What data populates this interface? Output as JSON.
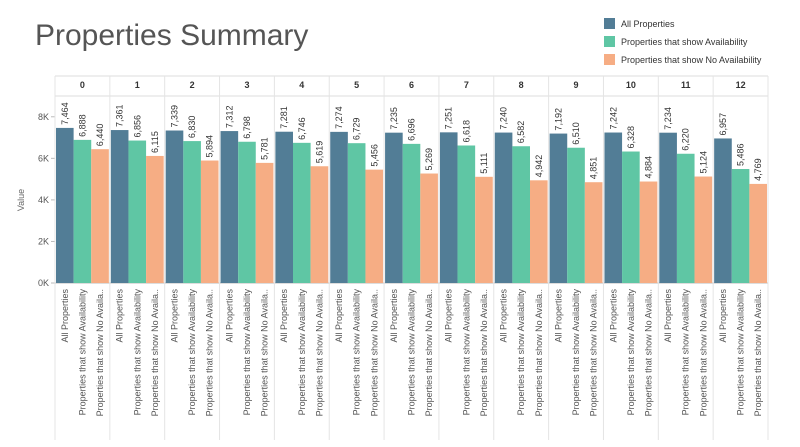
{
  "chart_data": {
    "type": "bar",
    "title": "Properties Summary",
    "y_label": "Value",
    "categories": [
      "0",
      "1",
      "2",
      "3",
      "4",
      "5",
      "6",
      "7",
      "8",
      "9",
      "10",
      "11",
      "12"
    ],
    "bar_labels": [
      "All Properties",
      "Properties that show Availability",
      "Properties that show No Availa.."
    ],
    "series": [
      {
        "name": "All Properties",
        "color": "#527d96",
        "values": [
          7464,
          7361,
          7339,
          7312,
          7281,
          7274,
          7235,
          7251,
          7240,
          7192,
          7242,
          7234,
          6957
        ],
        "value_labels": [
          "7,464",
          "7,361",
          "7,339",
          "7,312",
          "7,281",
          "7,274",
          "7,235",
          "7,251",
          "7,240",
          "7,192",
          "7,242",
          "7,234",
          "6,957"
        ]
      },
      {
        "name": "Properties that show Availability",
        "color": "#5fc6a4",
        "values": [
          6888,
          6856,
          6830,
          6798,
          6746,
          6729,
          6696,
          6618,
          6582,
          6510,
          6328,
          6220,
          5486
        ],
        "value_labels": [
          "6,888",
          "6,856",
          "6,830",
          "6,798",
          "6,746",
          "6,729",
          "6,696",
          "6,618",
          "6,582",
          "6,510",
          "6,328",
          "6,220",
          "5,486"
        ]
      },
      {
        "name": "Properties that show No Availability",
        "color": "#f6ad84",
        "values": [
          6440,
          6115,
          5894,
          5781,
          5619,
          5456,
          5269,
          5111,
          4942,
          4851,
          4884,
          5124,
          4769
        ],
        "value_labels": [
          "6,440",
          "6,115",
          "5,894",
          "5,781",
          "5,619",
          "5,456",
          "5,269",
          "5,111",
          "4,942",
          "4,851",
          "4,884",
          "5,124",
          "4,769"
        ]
      }
    ],
    "ylim": [
      0,
      9000
    ],
    "yticks": [
      {
        "value": 0,
        "label": "0K"
      },
      {
        "value": 2000,
        "label": "2K"
      },
      {
        "value": 4000,
        "label": "4K"
      },
      {
        "value": 6000,
        "label": "6K"
      },
      {
        "value": 8000,
        "label": "8K"
      }
    ],
    "legend": "top-right"
  }
}
